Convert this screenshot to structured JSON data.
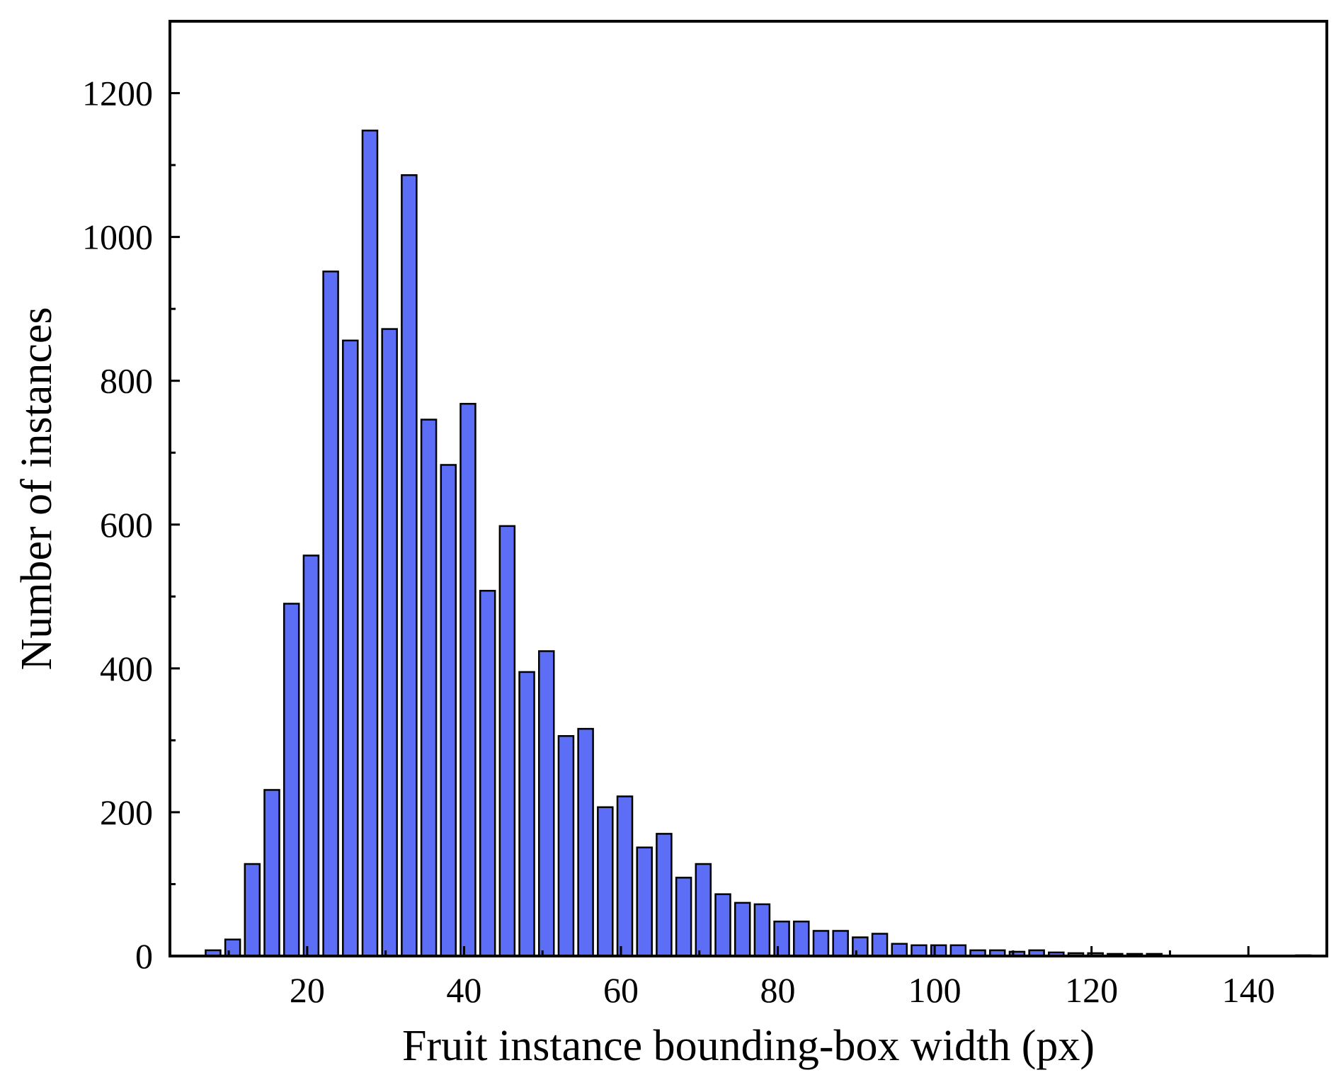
{
  "chart_data": {
    "type": "bar",
    "title": "",
    "xlabel": "Fruit instance bounding-box width (px)",
    "ylabel": "Number of instances",
    "xlim": [
      2.5,
      150
    ],
    "ylim": [
      0,
      1300
    ],
    "x_ticks": [
      20,
      40,
      60,
      80,
      100,
      120,
      140
    ],
    "y_ticks": [
      0,
      200,
      400,
      600,
      800,
      1000,
      1200
    ],
    "grid": false,
    "legend": "none",
    "bar_color": "#5b6ef5",
    "bar_edge_color": "#000000",
    "x": [
      8,
      10.5,
      13,
      15.5,
      18,
      20.5,
      23,
      25.5,
      28,
      30.5,
      33,
      35.5,
      38,
      40.5,
      43,
      45.5,
      48,
      50.5,
      53,
      55.5,
      58,
      60.5,
      63,
      65.5,
      68,
      70.5,
      73,
      75.5,
      78,
      80.5,
      83,
      85.5,
      88,
      90.5,
      93,
      95.5,
      98,
      100.5,
      103,
      105.5,
      108,
      110.5,
      113,
      115.5,
      118,
      120.5,
      123,
      125.5,
      128,
      147
    ],
    "values": [
      8,
      23,
      128,
      231,
      490,
      557,
      952,
      856,
      1148,
      872,
      1086,
      746,
      683,
      768,
      508,
      598,
      395,
      424,
      306,
      316,
      207,
      222,
      151,
      170,
      109,
      128,
      86,
      74,
      72,
      48,
      48,
      35,
      35,
      26,
      31,
      17,
      15,
      15,
      15,
      8,
      8,
      6,
      8,
      5,
      4,
      4,
      3,
      3,
      3,
      1
    ]
  }
}
